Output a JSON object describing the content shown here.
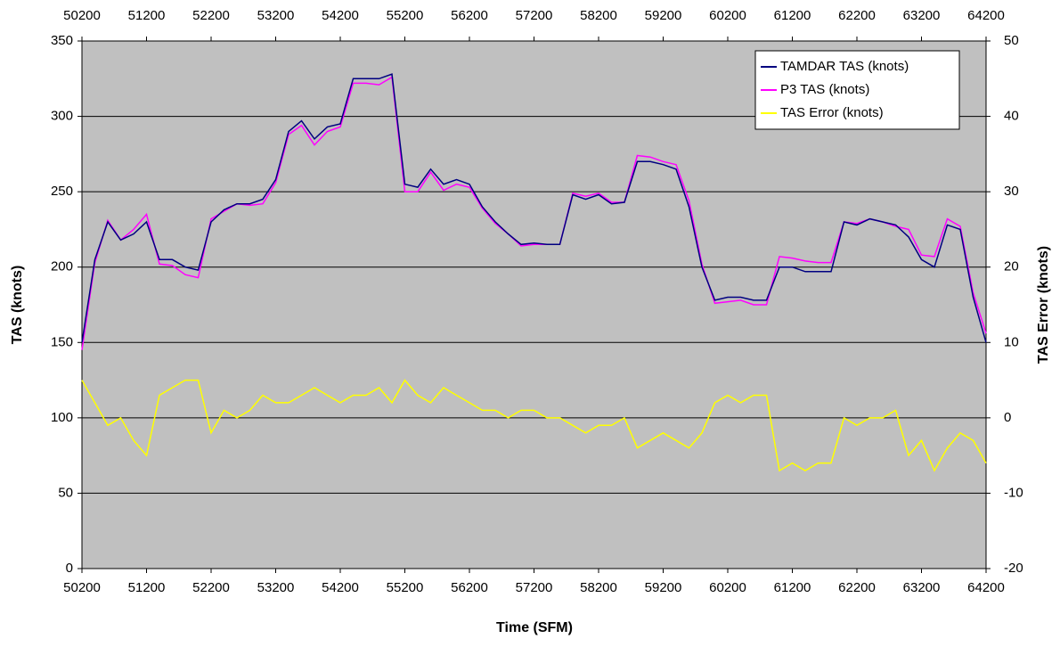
{
  "chart_data": {
    "type": "line",
    "x_label": "Time (SFM)",
    "y_label": "TAS (knots)",
    "y2_label": "TAS Error (knots)",
    "x": [
      50200,
      50400,
      50600,
      50800,
      51000,
      51200,
      51400,
      51600,
      51800,
      52000,
      52200,
      52400,
      52600,
      52800,
      53000,
      53200,
      53400,
      53600,
      53800,
      54000,
      54200,
      54400,
      54600,
      54800,
      55000,
      55200,
      55400,
      55600,
      55800,
      56000,
      56200,
      56400,
      56600,
      56800,
      57000,
      57200,
      57400,
      57600,
      57800,
      58000,
      58200,
      58400,
      58600,
      58800,
      59000,
      59200,
      59400,
      59600,
      59800,
      60000,
      60200,
      60400,
      60600,
      60800,
      61000,
      61200,
      61400,
      61600,
      61800,
      62000,
      62200,
      62400,
      62600,
      62800,
      63000,
      63200,
      63400,
      63600,
      63800,
      64000,
      64200
    ],
    "series": [
      {
        "name": "TAMDAR TAS (knots)",
        "color": "#000080",
        "values": [
          150,
          205,
          230,
          218,
          222,
          230,
          205,
          205,
          200,
          198,
          230,
          238,
          242,
          242,
          245,
          258,
          290,
          297,
          285,
          293,
          295,
          325,
          325,
          325,
          328,
          255,
          253,
          265,
          255,
          258,
          255,
          240,
          230,
          222,
          215,
          216,
          215,
          215,
          248,
          245,
          248,
          242,
          243,
          270,
          270,
          268,
          265,
          240,
          200,
          178,
          180,
          180,
          178,
          178,
          200,
          200,
          197,
          197,
          197,
          230,
          228,
          232,
          230,
          228,
          220,
          205,
          200,
          228,
          225,
          180,
          150
        ]
      },
      {
        "name": "P3 TAS (knots)",
        "color": "#ff00ff",
        "values": [
          145,
          203,
          231,
          218,
          225,
          235,
          202,
          201,
          195,
          193,
          232,
          237,
          242,
          241,
          242,
          256,
          288,
          294,
          281,
          290,
          293,
          322,
          322,
          321,
          326,
          250,
          250,
          263,
          251,
          255,
          253,
          239,
          229,
          222,
          214,
          215,
          215,
          215,
          249,
          247,
          249,
          243,
          243,
          274,
          273,
          270,
          268,
          244,
          202,
          176,
          177,
          178,
          175,
          175,
          207,
          206,
          204,
          203,
          203,
          230,
          229,
          232,
          230,
          227,
          225,
          208,
          207,
          232,
          227,
          183,
          156
        ]
      },
      {
        "name": "TAS Error (knots)",
        "color": "#ffff00",
        "axis": "y2",
        "values": [
          5,
          2,
          -1,
          0,
          -3,
          -5,
          3,
          4,
          5,
          5,
          -2,
          1,
          0,
          1,
          3,
          2,
          2,
          3,
          4,
          3,
          2,
          3,
          3,
          4,
          2,
          5,
          3,
          2,
          4,
          3,
          2,
          1,
          1,
          0,
          1,
          1,
          0,
          0,
          -1,
          -2,
          -1,
          -1,
          0,
          -4,
          -3,
          -2,
          -3,
          -4,
          -2,
          2,
          3,
          2,
          3,
          3,
          -7,
          -6,
          -7,
          -6,
          -6,
          0,
          -1,
          0,
          0,
          1,
          -5,
          -3,
          -7,
          -4,
          -2,
          -3,
          -6
        ]
      }
    ],
    "xlim": [
      50200,
      64200
    ],
    "xticks": [
      50200,
      51200,
      52200,
      53200,
      54200,
      55200,
      56200,
      57200,
      58200,
      59200,
      60200,
      61200,
      62200,
      63200,
      64200
    ],
    "ylim": [
      0,
      350
    ],
    "yticks": [
      0,
      50,
      100,
      150,
      200,
      250,
      300,
      350
    ],
    "y2lim": [
      -20,
      50
    ],
    "y2ticks": [
      -20,
      -10,
      0,
      10,
      20,
      30,
      40,
      50
    ],
    "grid": true,
    "legend": "top-right",
    "background": "#c0c0c0"
  }
}
